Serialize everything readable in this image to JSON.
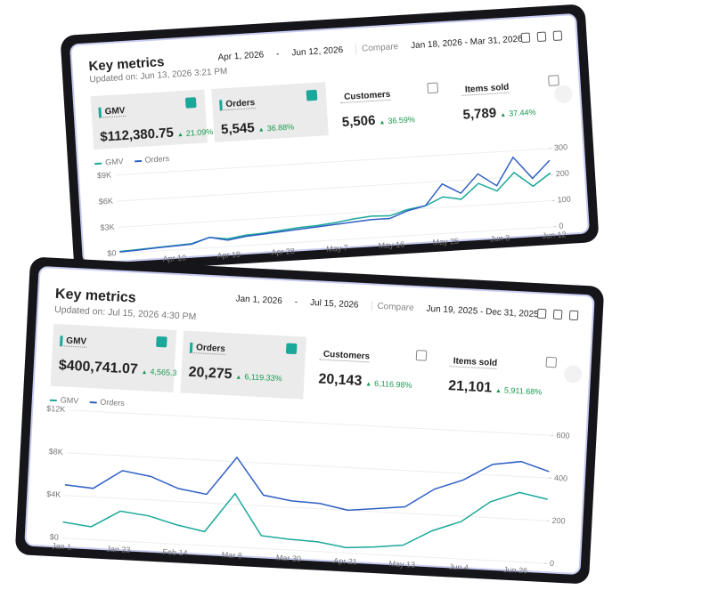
{
  "cards": [
    {
      "title": "Key metrics",
      "updated": "Updated on: Jun 13, 2026 3:21 PM",
      "date_start": "Apr 1, 2026",
      "range_separator": "-",
      "date_end": "Jun 12, 2026",
      "compare_label": "Compare",
      "compare_range": "Jan 18, 2026 - Mar 31, 2026",
      "metrics": [
        {
          "label": "GMV",
          "value": "$112,380.75",
          "change": "21.09%",
          "selected": true
        },
        {
          "label": "Orders",
          "value": "5,545",
          "change": "36.88%",
          "selected": true
        },
        {
          "label": "Customers",
          "value": "5,506",
          "change": "36.59%",
          "selected": false
        },
        {
          "label": "Items sold",
          "value": "5,789",
          "change": "37.44%",
          "selected": false
        }
      ]
    },
    {
      "title": "Key metrics",
      "updated": "Updated on: Jul 15, 2026 4:30 PM",
      "date_start": "Jan 1, 2026",
      "range_separator": "-",
      "date_end": "Jul 15, 2026",
      "compare_label": "Compare",
      "compare_range": "Jun 19, 2025 - Dec 31, 2025",
      "metrics": [
        {
          "label": "GMV",
          "value": "$400,741.07",
          "change": "4,565.3",
          "selected": true
        },
        {
          "label": "Orders",
          "value": "20,275",
          "change": "6,119.33%",
          "selected": true
        },
        {
          "label": "Customers",
          "value": "20,143",
          "change": "6,116.98%",
          "selected": false
        },
        {
          "label": "Items sold",
          "value": "21,101",
          "change": "5,911.68%",
          "selected": false
        }
      ]
    }
  ],
  "chart_data": [
    {
      "type": "line",
      "categories": [
        null,
        null,
        null,
        "Apr 10",
        null,
        null,
        "Apr 19",
        null,
        null,
        "Apr 28",
        null,
        null,
        "May 7",
        null,
        null,
        "May 16",
        null,
        null,
        "May 25",
        null,
        null,
        "Jun 3",
        null,
        null,
        "Jun 12"
      ],
      "series": [
        {
          "name": "GMV",
          "color": "#1aa89a",
          "axis": "y",
          "values": [
            200,
            300,
            400,
            500,
            600,
            1200,
            900,
            1200,
            1300,
            1500,
            1700,
            1800,
            2000,
            2300,
            2500,
            2400,
            3000,
            3300,
            4200,
            3800,
            5500,
            4500,
            6500,
            4800,
            6200
          ]
        },
        {
          "name": "Orders",
          "color": "#2f5fc4",
          "axis": "y2",
          "values": [
            5,
            8,
            12,
            15,
            18,
            40,
            25,
            35,
            40,
            45,
            50,
            55,
            60,
            65,
            70,
            70,
            95,
            110,
            190,
            150,
            220,
            170,
            275,
            190,
            255
          ]
        }
      ],
      "ylim": [
        0,
        9000
      ],
      "yticks": [
        {
          "value": 0,
          "label": "$0"
        },
        {
          "value": 3000,
          "label": "$3K"
        },
        {
          "value": 6000,
          "label": "$6K"
        },
        {
          "value": 9000,
          "label": "$9K"
        }
      ],
      "y2lim": [
        0,
        300
      ],
      "y2ticks": [
        0,
        100,
        200,
        300
      ],
      "grid": true
    },
    {
      "type": "line",
      "categories": [
        "Jan 1",
        null,
        "Jan 23",
        null,
        "Feb 14",
        null,
        "Mar 8",
        null,
        "Mar 30",
        null,
        "Apr 21",
        null,
        "May 13",
        null,
        "Jun 4",
        null,
        "Jun 26",
        null
      ],
      "series": [
        {
          "name": "GMV",
          "color": "#1aa89a",
          "axis": "y",
          "values": [
            1500,
            1200,
            2800,
            2500,
            1800,
            1300,
            5000,
            1200,
            1000,
            900,
            500,
            700,
            1000,
            2500,
            3500,
            5500,
            6500,
            6000
          ]
        },
        {
          "name": "Orders",
          "color": "#2f5fc4",
          "axis": "y2",
          "values": [
            250,
            240,
            330,
            310,
            260,
            240,
            420,
            250,
            230,
            225,
            200,
            215,
            230,
            320,
            370,
            450,
            470,
            430
          ]
        }
      ],
      "ylim": [
        0,
        12000
      ],
      "yticks": [
        {
          "value": 0,
          "label": "$0"
        },
        {
          "value": 4000,
          "label": "$4K"
        },
        {
          "value": 8000,
          "label": "$8K"
        },
        {
          "value": 12000,
          "label": "$12K"
        }
      ],
      "y2lim": [
        0,
        600
      ],
      "y2ticks": [
        0,
        200,
        400,
        600
      ],
      "grid": true
    }
  ]
}
